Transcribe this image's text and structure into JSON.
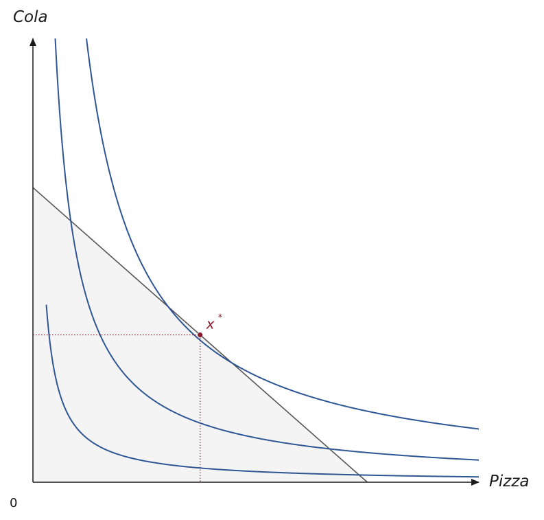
{
  "chart_data": {
    "type": "line",
    "title": "",
    "xlabel": "Pizza",
    "ylabel": "Cola",
    "origin_label": "0",
    "xlim": [
      0,
      10
    ],
    "ylim": [
      0,
      10
    ],
    "grid": false,
    "legend": "none",
    "budget_line": {
      "x_intercept": 7.5,
      "y_intercept": 6.64,
      "fill_color": "#f4f4f4",
      "line_color": "#555555"
    },
    "indifference_curves": {
      "color": "#2e5594",
      "x_range": [
        0.3,
        10
      ],
      "utility_levels": [
        1.2,
        5.0,
        12.0
      ]
    },
    "optimum": {
      "label": "x",
      "superscript": "*",
      "x": 3.75,
      "y": 3.32,
      "color": "#8b1a2b"
    }
  }
}
